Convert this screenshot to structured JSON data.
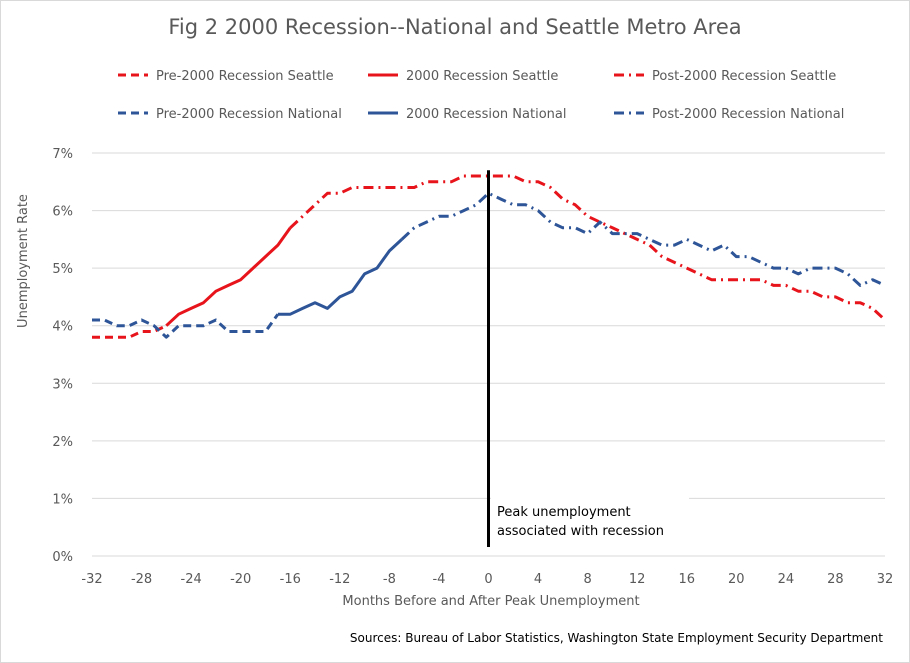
{
  "chart_data": {
    "type": "line",
    "title": "Fig 2 2000 Recession--National and Seattle Metro Area",
    "xlabel": "Months Before and After Peak Unemployment",
    "ylabel": "Unemployment Rate",
    "xlim": [
      -32,
      32
    ],
    "ylim": [
      0,
      7
    ],
    "x_ticks": [
      "-32",
      "-28",
      "-24",
      "-20",
      "-16",
      "-12",
      "-8",
      "-4",
      "0",
      "4",
      "8",
      "12",
      "16",
      "20",
      "24",
      "28",
      "32"
    ],
    "y_ticks": [
      "0%",
      "1%",
      "2%",
      "3%",
      "4%",
      "5%",
      "6%",
      "7%"
    ],
    "grid": "horizontal",
    "legend_position": "top",
    "colors": {
      "seattle": "#e8141c",
      "national": "#2e5597",
      "grid": "#d9d9d9",
      "peak_line": "#000000"
    },
    "annotation": {
      "x": 0,
      "text_line1": "Peak unemployment",
      "text_line2": "associated with recession"
    },
    "source": "Sources: Bureau of Labor Statistics, Washington State Employment Security Department",
    "series": [
      {
        "name": "Pre-2000 Recession Seattle",
        "color": "#e8141c",
        "dash": "dashed",
        "points": [
          [
            -32,
            3.8
          ],
          [
            -31,
            3.8
          ],
          [
            -30,
            3.8
          ],
          [
            -29,
            3.8
          ],
          [
            -28,
            3.9
          ],
          [
            -27,
            3.9
          ],
          [
            -26,
            4.0
          ]
        ]
      },
      {
        "name": "2000 Recession Seattle",
        "color": "#e8141c",
        "dash": "solid",
        "points": [
          [
            -26,
            4.0
          ],
          [
            -25,
            4.2
          ],
          [
            -24,
            4.3
          ],
          [
            -23,
            4.4
          ],
          [
            -22,
            4.6
          ],
          [
            -21,
            4.7
          ],
          [
            -20,
            4.8
          ],
          [
            -19,
            5.0
          ],
          [
            -18,
            5.2
          ],
          [
            -17,
            5.4
          ],
          [
            -16,
            5.7
          ]
        ]
      },
      {
        "name": "Post-2000 Recession Seattle",
        "color": "#e8141c",
        "dash": "dashdot",
        "points": [
          [
            -16,
            5.7
          ],
          [
            -15,
            5.9
          ],
          [
            -14,
            6.1
          ],
          [
            -13,
            6.3
          ],
          [
            -12,
            6.3
          ],
          [
            -11,
            6.4
          ],
          [
            -10,
            6.4
          ],
          [
            -9,
            6.4
          ],
          [
            -8,
            6.4
          ],
          [
            -7,
            6.4
          ],
          [
            -6,
            6.4
          ],
          [
            -5,
            6.5
          ],
          [
            -4,
            6.5
          ],
          [
            -3,
            6.5
          ],
          [
            -2,
            6.6
          ],
          [
            -1,
            6.6
          ],
          [
            0,
            6.6
          ],
          [
            1,
            6.6
          ],
          [
            2,
            6.6
          ],
          [
            3,
            6.5
          ],
          [
            4,
            6.5
          ],
          [
            5,
            6.4
          ],
          [
            6,
            6.2
          ],
          [
            7,
            6.1
          ],
          [
            8,
            5.9
          ],
          [
            9,
            5.8
          ],
          [
            10,
            5.7
          ],
          [
            11,
            5.6
          ],
          [
            12,
            5.5
          ],
          [
            13,
            5.4
          ],
          [
            14,
            5.2
          ],
          [
            15,
            5.1
          ],
          [
            16,
            5.0
          ],
          [
            17,
            4.9
          ],
          [
            18,
            4.8
          ],
          [
            19,
            4.8
          ],
          [
            20,
            4.8
          ],
          [
            21,
            4.8
          ],
          [
            22,
            4.8
          ],
          [
            23,
            4.7
          ],
          [
            24,
            4.7
          ],
          [
            25,
            4.6
          ],
          [
            26,
            4.6
          ],
          [
            27,
            4.5
          ],
          [
            28,
            4.5
          ],
          [
            29,
            4.4
          ],
          [
            30,
            4.4
          ],
          [
            31,
            4.3
          ],
          [
            32,
            4.1
          ]
        ]
      },
      {
        "name": "Pre-2000 Recession National",
        "color": "#2e5597",
        "dash": "dashed",
        "points": [
          [
            -32,
            4.1
          ],
          [
            -31,
            4.1
          ],
          [
            -30,
            4.0
          ],
          [
            -29,
            4.0
          ],
          [
            -28,
            4.1
          ],
          [
            -27,
            4.0
          ],
          [
            -26,
            3.8
          ],
          [
            -25,
            4.0
          ],
          [
            -24,
            4.0
          ],
          [
            -23,
            4.0
          ],
          [
            -22,
            4.1
          ],
          [
            -21,
            3.9
          ],
          [
            -20,
            3.9
          ],
          [
            -19,
            3.9
          ],
          [
            -18,
            3.9
          ],
          [
            -17,
            4.2
          ]
        ]
      },
      {
        "name": "2000 Recession National",
        "color": "#2e5597",
        "dash": "solid",
        "points": [
          [
            -17,
            4.2
          ],
          [
            -16,
            4.2
          ],
          [
            -15,
            4.3
          ],
          [
            -14,
            4.4
          ],
          [
            -13,
            4.3
          ],
          [
            -12,
            4.5
          ],
          [
            -11,
            4.6
          ],
          [
            -10,
            4.9
          ],
          [
            -9,
            5.0
          ],
          [
            -8,
            5.3
          ],
          [
            -7,
            5.5
          ]
        ]
      },
      {
        "name": "Post-2000 Recession National",
        "color": "#2e5597",
        "dash": "dashdot",
        "points": [
          [
            -7,
            5.5
          ],
          [
            -6,
            5.7
          ],
          [
            -5,
            5.8
          ],
          [
            -4,
            5.9
          ],
          [
            -3,
            5.9
          ],
          [
            -2,
            6.0
          ],
          [
            -1,
            6.1
          ],
          [
            0,
            6.3
          ],
          [
            1,
            6.2
          ],
          [
            2,
            6.1
          ],
          [
            3,
            6.1
          ],
          [
            4,
            6.0
          ],
          [
            5,
            5.8
          ],
          [
            6,
            5.7
          ],
          [
            7,
            5.7
          ],
          [
            8,
            5.6
          ],
          [
            9,
            5.8
          ],
          [
            10,
            5.6
          ],
          [
            11,
            5.6
          ],
          [
            12,
            5.6
          ],
          [
            13,
            5.5
          ],
          [
            14,
            5.4
          ],
          [
            15,
            5.4
          ],
          [
            16,
            5.5
          ],
          [
            17,
            5.4
          ],
          [
            18,
            5.3
          ],
          [
            19,
            5.4
          ],
          [
            20,
            5.2
          ],
          [
            21,
            5.2
          ],
          [
            22,
            5.1
          ],
          [
            23,
            5.0
          ],
          [
            24,
            5.0
          ],
          [
            25,
            4.9
          ],
          [
            26,
            5.0
          ],
          [
            27,
            5.0
          ],
          [
            28,
            5.0
          ],
          [
            29,
            4.9
          ],
          [
            30,
            4.7
          ],
          [
            31,
            4.8
          ],
          [
            32,
            4.7
          ]
        ]
      }
    ]
  }
}
